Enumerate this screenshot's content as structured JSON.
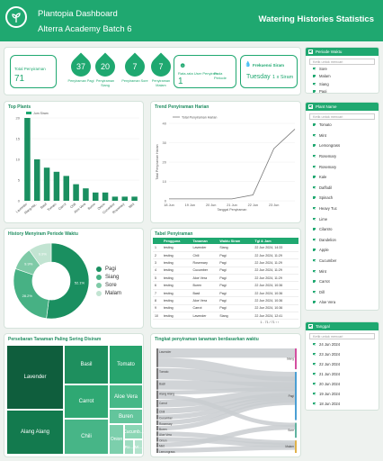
{
  "header": {
    "title": "Plantopia Dashboard",
    "subtitle": "Alterra Academy Batch 6",
    "page_title": "Watering Histories Statistics"
  },
  "kpis": {
    "total": {
      "label": "Total Penyiraman",
      "value": "71"
    },
    "drops": [
      {
        "value": "37",
        "label": "Penyiraman Pagi"
      },
      {
        "value": "20",
        "label": "Penyiraman Siang"
      },
      {
        "value": "7",
        "label": "Penyiraman Sore"
      },
      {
        "value": "7",
        "label": "Penyiraman Malam"
      }
    ],
    "user": {
      "label": "Rata-rata User Penyiram",
      "sublabel": "Pada Periode",
      "value": "1"
    },
    "freq": {
      "label": "Frekuensi Siram",
      "value": "Tuesday",
      "value2": "1 x Siram"
    }
  },
  "bar_chart": {
    "title": "Top Plants",
    "chart_data": {
      "type": "bar",
      "legend": "Jum Siram",
      "categories": [
        "Lavender",
        "Alang Ala..",
        "Basil",
        "Tomato",
        "Carrot",
        "Chili",
        "Aloe Vera",
        "Buren",
        "Onion",
        "Cucumber",
        "Rosemary",
        "Mint"
      ],
      "values": [
        20,
        10,
        8,
        7,
        6,
        4,
        3,
        2,
        2,
        1,
        1,
        1
      ],
      "ylim": [
        0,
        20
      ],
      "yticks": [
        "20",
        "15",
        "10",
        "5",
        "0"
      ]
    }
  },
  "line_chart": {
    "title": "Trend Penyiraman Harian",
    "chart_data": {
      "type": "line",
      "legend": "Total Penyiraman Harian",
      "x": [
        "18 Jun",
        "19 Jun",
        "20 Jun",
        "21 Jun",
        "22 Jun",
        "23 Jun",
        "24 Jun"
      ],
      "y": [
        1,
        1,
        1,
        1,
        3,
        27,
        37
      ],
      "ylim": [
        0,
        40
      ],
      "yticks": [
        "40",
        "30",
        "20",
        "10",
        "0"
      ],
      "xticks": [
        "18 Jun",
        "19 Jun",
        "20 Jun",
        "21 Jun",
        "22 Jun",
        "23 Jun"
      ],
      "xlabel": "Tanggal Penyiraman",
      "ylabel": "Total Penyiraman Harian"
    }
  },
  "donut": {
    "title": "History Menyiram Periode Waktu",
    "chart_data": {
      "type": "pie",
      "categories": [
        "Pagi",
        "Siang",
        "Sore",
        "Malam"
      ],
      "values": [
        52.1,
        28.2,
        9.9,
        9.9
      ],
      "labels": [
        "52.1%",
        "28.2%",
        "9.9%",
        "9.9%"
      ]
    },
    "legend": [
      "Pagi",
      "Siang",
      "Sore",
      "Malam"
    ],
    "colors": [
      "#1a8f60",
      "#47b184",
      "#7fcaa7",
      "#c2e4d2"
    ]
  },
  "table": {
    "title": "Tabel Penyiraman",
    "headers": [
      "Pengguna",
      "Tanaman",
      "Waktu Siram",
      "Tgl & Jam"
    ],
    "rows": [
      [
        "1",
        "testing",
        "Lavender",
        "Siang",
        "22 Jun 2024, 14:33"
      ],
      [
        "2",
        "testing",
        "Chili",
        "Pagi",
        "22 Jun 2024, 11:29"
      ],
      [
        "3",
        "testing",
        "Rosemary",
        "Pagi",
        "22 Jun 2024, 11:29"
      ],
      [
        "4",
        "testing",
        "Cucumber",
        "Pagi",
        "22 Jun 2024, 11:29"
      ],
      [
        "5",
        "testing",
        "Aloe Vera",
        "Pagi",
        "22 Jun 2024, 11:29"
      ],
      [
        "6",
        "testing",
        "Buren",
        "Pagi",
        "22 Jun 2024, 10:36"
      ],
      [
        "7",
        "testing",
        "Basil",
        "Pagi",
        "22 Jun 2024, 10:36"
      ],
      [
        "8",
        "testing",
        "Aloe Vera",
        "Pagi",
        "22 Jun 2024, 10:36"
      ],
      [
        "9",
        "testing",
        "Carrot",
        "Pagi",
        "22 Jun 2024, 10:36"
      ],
      [
        "10",
        "testing",
        "Lavender",
        "Siang",
        "22 Jun 2024, 12:41"
      ]
    ],
    "pagination": "1 - 71 / 71"
  },
  "treemap": {
    "title": "Persebaran Tanaman Paling Sering Disiram",
    "items": [
      "Lavender",
      "Alang Alang",
      "Basil",
      "Tomato",
      "Carrot",
      "Aloe Vera",
      "Chili",
      "Buren",
      "Onion",
      "Cucumb...",
      "Ro...",
      "Mi..."
    ]
  },
  "sankey": {
    "title": "Tingkat penyiraman tanaman berdasarkan waktu",
    "left": [
      "Lavender",
      "Tomato",
      "Basil",
      "Alang Alang",
      "Carrot",
      "Chili",
      "Cucumber",
      "Rosemary",
      "Buren",
      "Aloe Vera",
      "Onion",
      "Mint",
      "Lemongrass"
    ],
    "right": [
      "Siang",
      "Pagi",
      "Sore",
      "Malam"
    ]
  },
  "filters": {
    "period": {
      "title": "Periode Waktu",
      "search": "Ketik untuk mencari",
      "items": [
        "Sore",
        "Malam",
        "Siang",
        "Pagi"
      ]
    },
    "plant": {
      "title": "Plant Name",
      "search": "Ketik untuk mencari",
      "items": [
        "Tomato",
        "Mint",
        "Lemongrass",
        "Rosemary",
        "Rosemary",
        "Kale",
        "Daffodil",
        "Spinach",
        "Heavy Tuc",
        "Lime",
        "Cilantro",
        "Dandelion",
        "Apple",
        "Cucumber",
        "Mint",
        "Carrot",
        "Dill",
        "Aloe Vera"
      ]
    },
    "date": {
      "title": "Tanggal",
      "search": "Ketik untuk mencari",
      "items": [
        "24 Jun 2024",
        "23 Jun 2024",
        "22 Jun 2024",
        "21 Jun 2024",
        "20 Jun 2024",
        "19 Jun 2024",
        "18 Jun 2024"
      ]
    }
  }
}
